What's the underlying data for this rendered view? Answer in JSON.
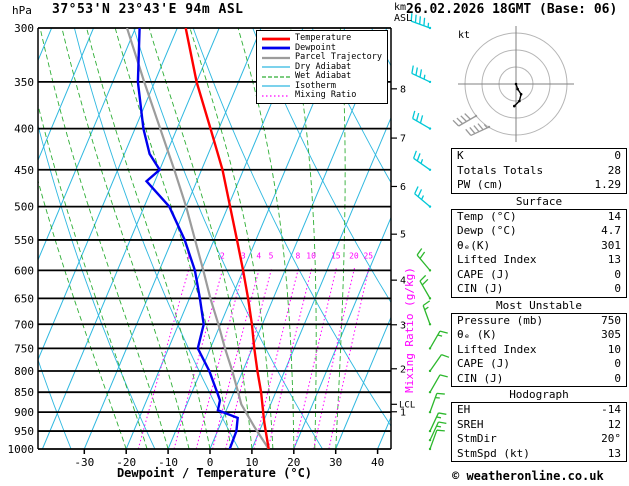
{
  "header": {
    "pressure_unit": "hPa",
    "station": "37°53'N 23°43'E 94m ASL",
    "datetime": "26.02.2026 18GMT (Base: 06)",
    "km_label": "km",
    "asl_label": "ASL"
  },
  "footer": {
    "copyright": "© weatheronline.co.uk"
  },
  "palette": {
    "temperature": "#ff0000",
    "dewpoint": "#0000ee",
    "parcel": "#9c9c9c",
    "dry_adiabat": "#2fb8e0",
    "wet_adiabat": "#2eae35",
    "isotherm": "#2fb8e0",
    "mixing": "#ff00ff",
    "barb_green": "#2db82d",
    "barb_cyan": "#00c8d7",
    "frame": "#000000"
  },
  "legend": [
    {
      "label": "Temperature",
      "color": "#ff0000",
      "width": 2.8,
      "dash": ""
    },
    {
      "label": "Dewpoint",
      "color": "#0000ee",
      "width": 2.8,
      "dash": ""
    },
    {
      "label": "Parcel Trajectory",
      "color": "#9c9c9c",
      "width": 2.2,
      "dash": ""
    },
    {
      "label": "Dry Adiabat",
      "color": "#2fb8e0",
      "width": 1.2,
      "dash": ""
    },
    {
      "label": "Wet Adiabat",
      "color": "#2eae35",
      "width": 1.2,
      "dash": "4 2"
    },
    {
      "label": "Isotherm",
      "color": "#2fb8e0",
      "width": 1.2,
      "dash": ""
    },
    {
      "label": "Mixing Ratio",
      "color": "#ff00ff",
      "width": 1.2,
      "dash": "1.5 2.5"
    }
  ],
  "chart_data": {
    "type": "skewt-log-p",
    "xlabel": "Dewpoint / Temperature (°C)",
    "pressure_axis": {
      "unit": "hPa",
      "min": 300,
      "max": 1000,
      "levels": [
        300,
        350,
        400,
        450,
        500,
        550,
        600,
        650,
        700,
        750,
        800,
        850,
        900,
        950,
        1000
      ]
    },
    "temp_axis": {
      "unit": "°C",
      "ticks": [
        -30,
        -20,
        -10,
        0,
        10,
        20,
        30,
        40
      ]
    },
    "km_axis": {
      "ticks": [
        1,
        2,
        3,
        4,
        5,
        6,
        7,
        8
      ],
      "pressures": [
        899,
        795,
        701,
        617,
        541,
        472,
        411,
        357
      ]
    },
    "mixing_ratio": {
      "label": "Mixing Ratio (g/kg)",
      "values": [
        1,
        2,
        3,
        4,
        5,
        8,
        10,
        15,
        20,
        25
      ]
    },
    "lcl": {
      "label": "LCL",
      "pressure": 880
    },
    "temperature_profile": [
      [
        1000,
        14
      ],
      [
        950,
        11.5
      ],
      [
        925,
        10.2
      ],
      [
        900,
        9
      ],
      [
        850,
        6.5
      ],
      [
        800,
        3.5
      ],
      [
        750,
        0.5
      ],
      [
        700,
        -2.5
      ],
      [
        650,
        -6
      ],
      [
        600,
        -10
      ],
      [
        550,
        -14.5
      ],
      [
        500,
        -19.5
      ],
      [
        450,
        -25
      ],
      [
        400,
        -32
      ],
      [
        350,
        -40
      ],
      [
        300,
        -48
      ]
    ],
    "dewpoint_profile": [
      [
        1000,
        4.7
      ],
      [
        950,
        4.5
      ],
      [
        915,
        3.5
      ],
      [
        895,
        -2
      ],
      [
        870,
        -2.5
      ],
      [
        850,
        -4
      ],
      [
        800,
        -8
      ],
      [
        750,
        -13
      ],
      [
        700,
        -14
      ],
      [
        650,
        -17.5
      ],
      [
        600,
        -21.5
      ],
      [
        550,
        -27
      ],
      [
        500,
        -34
      ],
      [
        465,
        -42
      ],
      [
        450,
        -40
      ],
      [
        430,
        -44
      ],
      [
        400,
        -48
      ],
      [
        350,
        -54
      ],
      [
        300,
        -59
      ]
    ],
    "parcel_profile": [
      [
        1000,
        14
      ],
      [
        940,
        8.5
      ],
      [
        880,
        3
      ],
      [
        850,
        1
      ],
      [
        800,
        -2.5
      ],
      [
        750,
        -6.5
      ],
      [
        700,
        -10.5
      ],
      [
        650,
        -15
      ],
      [
        600,
        -19.5
      ],
      [
        550,
        -24.5
      ],
      [
        500,
        -30
      ],
      [
        450,
        -36.5
      ],
      [
        400,
        -44
      ],
      [
        350,
        -52.5
      ],
      [
        300,
        -62
      ]
    ],
    "wind_barbs": [
      {
        "p": 1000,
        "dir": 20,
        "spd": 10,
        "color": "green"
      },
      {
        "p": 975,
        "dir": 25,
        "spd": 15,
        "color": "green"
      },
      {
        "p": 950,
        "dir": 25,
        "spd": 15,
        "color": "green"
      },
      {
        "p": 900,
        "dir": 20,
        "spd": 15,
        "color": "green"
      },
      {
        "p": 850,
        "dir": 30,
        "spd": 10,
        "color": "green"
      },
      {
        "p": 800,
        "dir": 35,
        "spd": 10,
        "color": "green"
      },
      {
        "p": 750,
        "dir": 30,
        "spd": 15,
        "color": "green"
      },
      {
        "p": 700,
        "dir": 340,
        "spd": 15,
        "color": "green"
      },
      {
        "p": 650,
        "dir": 330,
        "spd": 20,
        "color": "green"
      },
      {
        "p": 600,
        "dir": 320,
        "spd": 20,
        "color": "green"
      },
      {
        "p": 500,
        "dir": 310,
        "spd": 25,
        "color": "cyan"
      },
      {
        "p": 450,
        "dir": 305,
        "spd": 25,
        "color": "cyan"
      },
      {
        "p": 400,
        "dir": 300,
        "spd": 30,
        "color": "cyan"
      },
      {
        "p": 350,
        "dir": 295,
        "spd": 35,
        "color": "cyan"
      },
      {
        "p": 300,
        "dir": 290,
        "spd": 45,
        "color": "cyan"
      }
    ],
    "hodograph": {
      "unit_label": "kt",
      "rings_kt": [
        10,
        20,
        30
      ],
      "trace_uv_kt": [
        [
          0,
          0
        ],
        [
          1,
          -3
        ],
        [
          3,
          -6
        ],
        [
          2,
          -10
        ],
        [
          -1,
          -13
        ]
      ],
      "mean_wind_barbs": [
        {
          "dir": 240,
          "spd": 40
        },
        {
          "dir": 245,
          "spd": 45
        }
      ]
    }
  },
  "panel": {
    "sections": [
      {
        "title": null,
        "rows": [
          [
            "K",
            "0"
          ],
          [
            "Totals Totals",
            "28"
          ],
          [
            "PW (cm)",
            "1.29"
          ]
        ]
      },
      {
        "title": "Surface",
        "rows": [
          [
            "Temp (°C)",
            "14"
          ],
          [
            "Dewp (°C)",
            "4.7"
          ],
          [
            "θₑ(K)",
            "301"
          ],
          [
            "Lifted Index",
            "13"
          ],
          [
            "CAPE (J)",
            "0"
          ],
          [
            "CIN (J)",
            "0"
          ]
        ]
      },
      {
        "title": "Most Unstable",
        "rows": [
          [
            "Pressure (mb)",
            "750"
          ],
          [
            "θₑ (K)",
            "305"
          ],
          [
            "Lifted Index",
            "10"
          ],
          [
            "CAPE (J)",
            "0"
          ],
          [
            "CIN (J)",
            "0"
          ]
        ]
      },
      {
        "title": "Hodograph",
        "rows": [
          [
            "EH",
            "-14"
          ],
          [
            "SREH",
            "12"
          ],
          [
            "StmDir",
            "20°"
          ],
          [
            "StmSpd (kt)",
            "13"
          ]
        ]
      }
    ]
  }
}
